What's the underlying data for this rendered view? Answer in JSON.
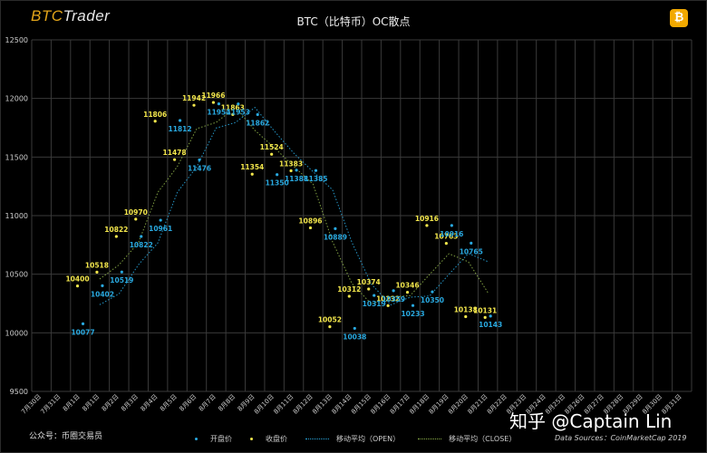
{
  "brand": {
    "part1": "BTC",
    "part2": "Trader"
  },
  "coin_icon": "bitcoin-icon",
  "watermark": "知乎 @Captain Lin",
  "footer": {
    "wechat": "公众号：币圈交易员",
    "source": "Data Sources：CoinMarketCap 2019"
  },
  "colors": {
    "open": "#29a9e0",
    "close": "#f2e64c",
    "grid": "#3a3a3a",
    "background": "#000000",
    "brand_accent": "#e3a51a"
  },
  "chart_data": {
    "type": "scatter",
    "title": "BTC（比特币）OC散点",
    "ylim": [
      9500,
      12500
    ],
    "yticks": [
      9500,
      10000,
      10500,
      11000,
      11500,
      12000,
      12500
    ],
    "grid": true,
    "legend_position": "bottom",
    "x": [
      "7月30日",
      "7月31日",
      "8月1日",
      "8月1日",
      "8月2日",
      "8月3日",
      "8月4日",
      "8月5日",
      "8月6日",
      "8月7日",
      "8月8日",
      "8月9日",
      "8月10日",
      "8月11日",
      "8月12日",
      "8月13日",
      "8月14日",
      "8月15日",
      "8月16日",
      "8月17日",
      "8月18日",
      "8月19日",
      "8月20日",
      "8月21日",
      "8月22日",
      "8月23日",
      "8月24日",
      "8月25日",
      "8月26日",
      "8月27日",
      "8月28日",
      "8月29日",
      "8月30日",
      "8月31日"
    ],
    "series": [
      {
        "name": "开盘价",
        "type": "scatter",
        "values": [
          null,
          null,
          10077,
          10402,
          10519,
          10822,
          10961,
          11812,
          11476,
          11954,
          11953,
          11862,
          11350,
          11388,
          11385,
          10889,
          10038,
          10319,
          10359,
          10233,
          10350,
          10916,
          10765,
          10143,
          null,
          null,
          null,
          null,
          null,
          null,
          null,
          null,
          null,
          null
        ]
      },
      {
        "name": "收盘价",
        "type": "scatter",
        "values": [
          null,
          null,
          10400,
          10518,
          10822,
          10970,
          11806,
          11478,
          11942,
          11966,
          11863,
          11354,
          11524,
          11383,
          10896,
          10052,
          10312,
          10374,
          10232,
          10346,
          10916,
          10763,
          10138,
          10131,
          null,
          null,
          null,
          null,
          null,
          null,
          null,
          null,
          null,
          null
        ]
      },
      {
        "name": "移动平均（OPEN）",
        "type": "line"
      },
      {
        "name": "移动平均（CLOSE）",
        "type": "line"
      }
    ]
  }
}
